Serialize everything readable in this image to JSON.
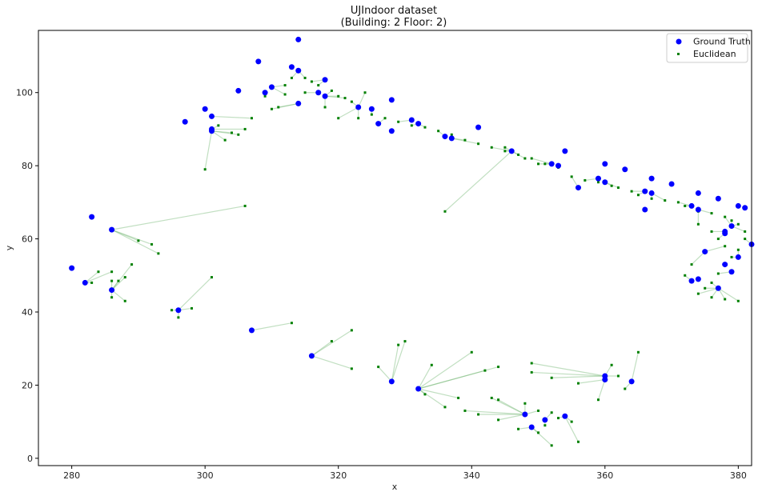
{
  "chart_data": {
    "type": "scatter",
    "title": "UJIndoor dataset",
    "subtitle": "(Building: 2 Floor: 2)",
    "xlabel": "x",
    "ylabel": "y",
    "xlim": [
      275,
      382
    ],
    "ylim": [
      -2,
      117
    ],
    "xticks": [
      280,
      300,
      320,
      340,
      360,
      380
    ],
    "yticks": [
      0,
      20,
      40,
      60,
      80,
      100
    ],
    "legend_position": "top-right",
    "colors": {
      "ground_truth": "#0000ff",
      "euclidean": "#008000",
      "link": "#76b876"
    },
    "series": [
      {
        "name": "Ground Truth",
        "marker": "circle",
        "points": [
          [
            283,
            66
          ],
          [
            286,
            62.5
          ],
          [
            280,
            52
          ],
          [
            282,
            48
          ],
          [
            286,
            46
          ],
          [
            296,
            40.5
          ],
          [
            297,
            92
          ],
          [
            300,
            95.5
          ],
          [
            301,
            90
          ],
          [
            301,
            89.5
          ],
          [
            301,
            93.5
          ],
          [
            305,
            100.5
          ],
          [
            308,
            108.5
          ],
          [
            309,
            100
          ],
          [
            310,
            101.5
          ],
          [
            313,
            107
          ],
          [
            314,
            114.5
          ],
          [
            314,
            106
          ],
          [
            314,
            97
          ],
          [
            317,
            100
          ],
          [
            318,
            103.5
          ],
          [
            318,
            99
          ],
          [
            323,
            96
          ],
          [
            325,
            95.5
          ],
          [
            326,
            91.5
          ],
          [
            328,
            98
          ],
          [
            328,
            89.5
          ],
          [
            331,
            92.5
          ],
          [
            332,
            91.5
          ],
          [
            336,
            88
          ],
          [
            337,
            87.5
          ],
          [
            341,
            90.5
          ],
          [
            346,
            84
          ],
          [
            352,
            80.5
          ],
          [
            353,
            80
          ],
          [
            354,
            84
          ],
          [
            356,
            74
          ],
          [
            359,
            76.5
          ],
          [
            360,
            80.5
          ],
          [
            360,
            75.5
          ],
          [
            363,
            79
          ],
          [
            366,
            73
          ],
          [
            367,
            76.5
          ],
          [
            367,
            72.5
          ],
          [
            366,
            68
          ],
          [
            370,
            75
          ],
          [
            373,
            69
          ],
          [
            374,
            72.5
          ],
          [
            374,
            68
          ],
          [
            377,
            71
          ],
          [
            378,
            61.5
          ],
          [
            378,
            62
          ],
          [
            379,
            63.5
          ],
          [
            380,
            69
          ],
          [
            381,
            68.5
          ],
          [
            382,
            58.5
          ],
          [
            380,
            55
          ],
          [
            375,
            56.5
          ],
          [
            378,
            53
          ],
          [
            379,
            51
          ],
          [
            373,
            48.5
          ],
          [
            374,
            49
          ],
          [
            377,
            46.5
          ],
          [
            307,
            35
          ],
          [
            316,
            28
          ],
          [
            328,
            21
          ],
          [
            332,
            19
          ],
          [
            360,
            22.5
          ],
          [
            360,
            21.5
          ],
          [
            364,
            21
          ],
          [
            348,
            12
          ],
          [
            349,
            8.5
          ],
          [
            351,
            10.5
          ],
          [
            354,
            11.5
          ]
        ]
      },
      {
        "name": "Euclidean",
        "marker": "square",
        "points": [
          [
            284,
            51
          ],
          [
            286,
            48.5
          ],
          [
            287,
            48.5
          ],
          [
            288,
            49.5
          ],
          [
            289,
            53
          ],
          [
            286,
            44
          ],
          [
            288,
            43
          ],
          [
            286,
            51
          ],
          [
            283,
            48
          ],
          [
            290,
            59.5
          ],
          [
            292,
            58.5
          ],
          [
            293,
            56
          ],
          [
            301,
            49.5
          ],
          [
            295,
            40.5
          ],
          [
            296,
            38.5
          ],
          [
            298,
            41
          ],
          [
            300,
            79
          ],
          [
            306,
            69
          ],
          [
            304,
            89
          ],
          [
            305,
            88.5
          ],
          [
            306,
            90
          ],
          [
            303,
            87
          ],
          [
            302,
            91
          ],
          [
            307,
            93
          ],
          [
            310,
            95.5
          ],
          [
            311,
            96
          ],
          [
            312,
            99.5
          ],
          [
            309,
            99
          ],
          [
            315,
            104
          ],
          [
            316,
            103
          ],
          [
            317,
            102
          ],
          [
            319,
            100.5
          ],
          [
            320,
            99
          ],
          [
            321,
            98.5
          ],
          [
            322,
            97.5
          ],
          [
            315,
            100
          ],
          [
            312,
            102
          ],
          [
            313,
            104
          ],
          [
            318,
            96
          ],
          [
            320,
            93
          ],
          [
            323,
            93
          ],
          [
            325,
            94
          ],
          [
            327,
            93
          ],
          [
            329,
            92
          ],
          [
            331,
            91
          ],
          [
            333,
            90.5
          ],
          [
            335,
            89.5
          ],
          [
            337,
            88.5
          ],
          [
            339,
            87
          ],
          [
            341,
            86
          ],
          [
            343,
            85
          ],
          [
            345,
            84
          ],
          [
            347,
            83
          ],
          [
            349,
            82
          ],
          [
            351,
            80.5
          ],
          [
            353,
            79.5
          ],
          [
            355,
            77
          ],
          [
            357,
            76
          ],
          [
            359,
            75.5
          ],
          [
            361,
            74.5
          ],
          [
            362,
            74
          ],
          [
            364,
            73
          ],
          [
            365,
            72
          ],
          [
            367,
            71
          ],
          [
            369,
            70.5
          ],
          [
            371,
            70
          ],
          [
            372,
            69
          ],
          [
            374,
            67.5
          ],
          [
            376,
            67
          ],
          [
            378,
            66
          ],
          [
            379,
            65
          ],
          [
            380,
            64
          ],
          [
            381,
            62
          ],
          [
            381,
            60
          ],
          [
            380,
            57
          ],
          [
            379,
            55
          ],
          [
            378,
            53
          ],
          [
            377,
            50.5
          ],
          [
            376,
            48
          ],
          [
            375,
            46.5
          ],
          [
            374,
            45
          ],
          [
            376,
            44
          ],
          [
            378,
            43.5
          ],
          [
            380,
            43
          ],
          [
            373,
            53
          ],
          [
            372,
            50
          ],
          [
            377,
            60
          ],
          [
            378,
            58
          ],
          [
            376,
            62
          ],
          [
            374,
            64
          ],
          [
            336,
            67.5
          ],
          [
            324,
            100
          ],
          [
            328,
            98
          ],
          [
            345,
            85
          ],
          [
            348,
            82
          ],
          [
            350,
            80.5
          ],
          [
            313,
            37
          ],
          [
            319,
            32
          ],
          [
            322,
            35
          ],
          [
            330,
            32
          ],
          [
            329,
            31
          ],
          [
            322,
            24.5
          ],
          [
            326,
            25
          ],
          [
            334,
            25.5
          ],
          [
            340,
            29
          ],
          [
            342,
            24
          ],
          [
            344,
            25
          ],
          [
            349,
            26
          ],
          [
            349,
            23.5
          ],
          [
            352,
            22
          ],
          [
            356,
            20.5
          ],
          [
            361,
            25.5
          ],
          [
            362,
            22.5
          ],
          [
            365,
            29
          ],
          [
            363,
            19
          ],
          [
            359,
            16
          ],
          [
            333,
            17.5
          ],
          [
            338,
            16.5
          ],
          [
            336,
            14
          ],
          [
            339,
            13
          ],
          [
            343,
            16.5
          ],
          [
            341,
            12
          ],
          [
            344,
            10.5
          ],
          [
            344,
            16
          ],
          [
            348,
            15
          ],
          [
            350,
            13
          ],
          [
            352,
            12.5
          ],
          [
            353,
            11
          ],
          [
            355,
            10
          ],
          [
            351,
            9
          ],
          [
            352,
            3.5
          ],
          [
            356,
            4.5
          ],
          [
            350,
            7
          ],
          [
            347,
            8
          ]
        ]
      }
    ]
  }
}
